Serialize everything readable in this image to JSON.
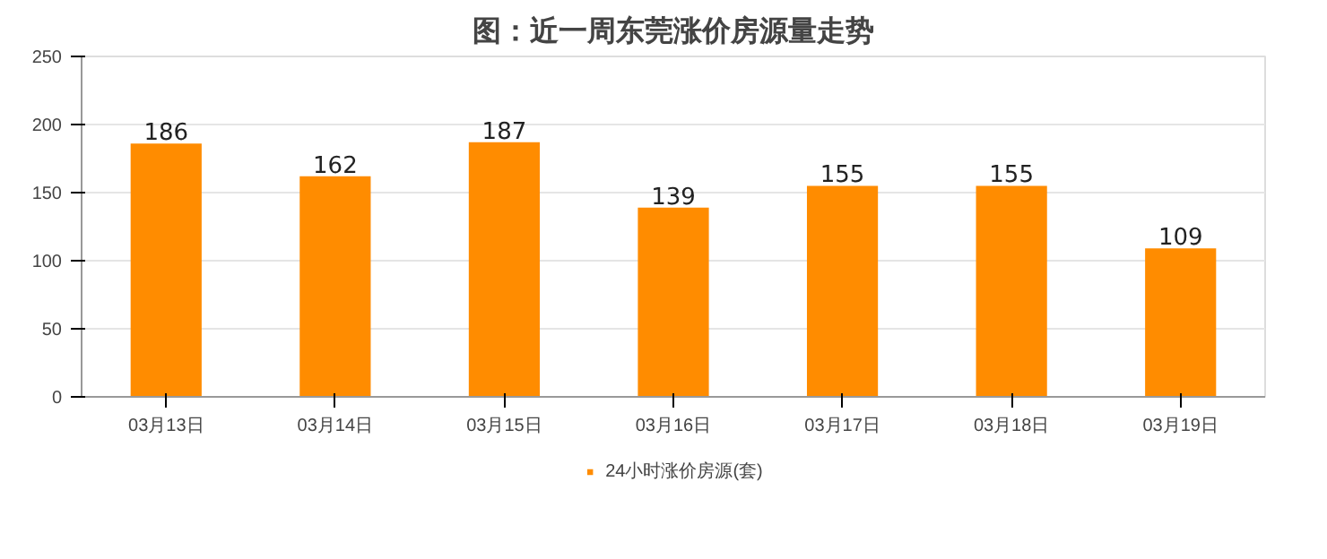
{
  "chart_data": {
    "type": "bar",
    "title": "图：近一周东莞涨价房源量走势",
    "categories": [
      "03月13日",
      "03月14日",
      "03月15日",
      "03月16日",
      "03月17日",
      "03月18日",
      "03月19日"
    ],
    "series": [
      {
        "name": "24小时涨价房源(套)",
        "color": "#ff8c00",
        "values": [
          186,
          162,
          187,
          139,
          155,
          155,
          109
        ]
      }
    ],
    "ylim": [
      0,
      250
    ],
    "yticks": [
      0,
      50,
      100,
      150,
      200,
      250
    ],
    "grid": "y",
    "legend": "bottom",
    "data_labels": true
  }
}
